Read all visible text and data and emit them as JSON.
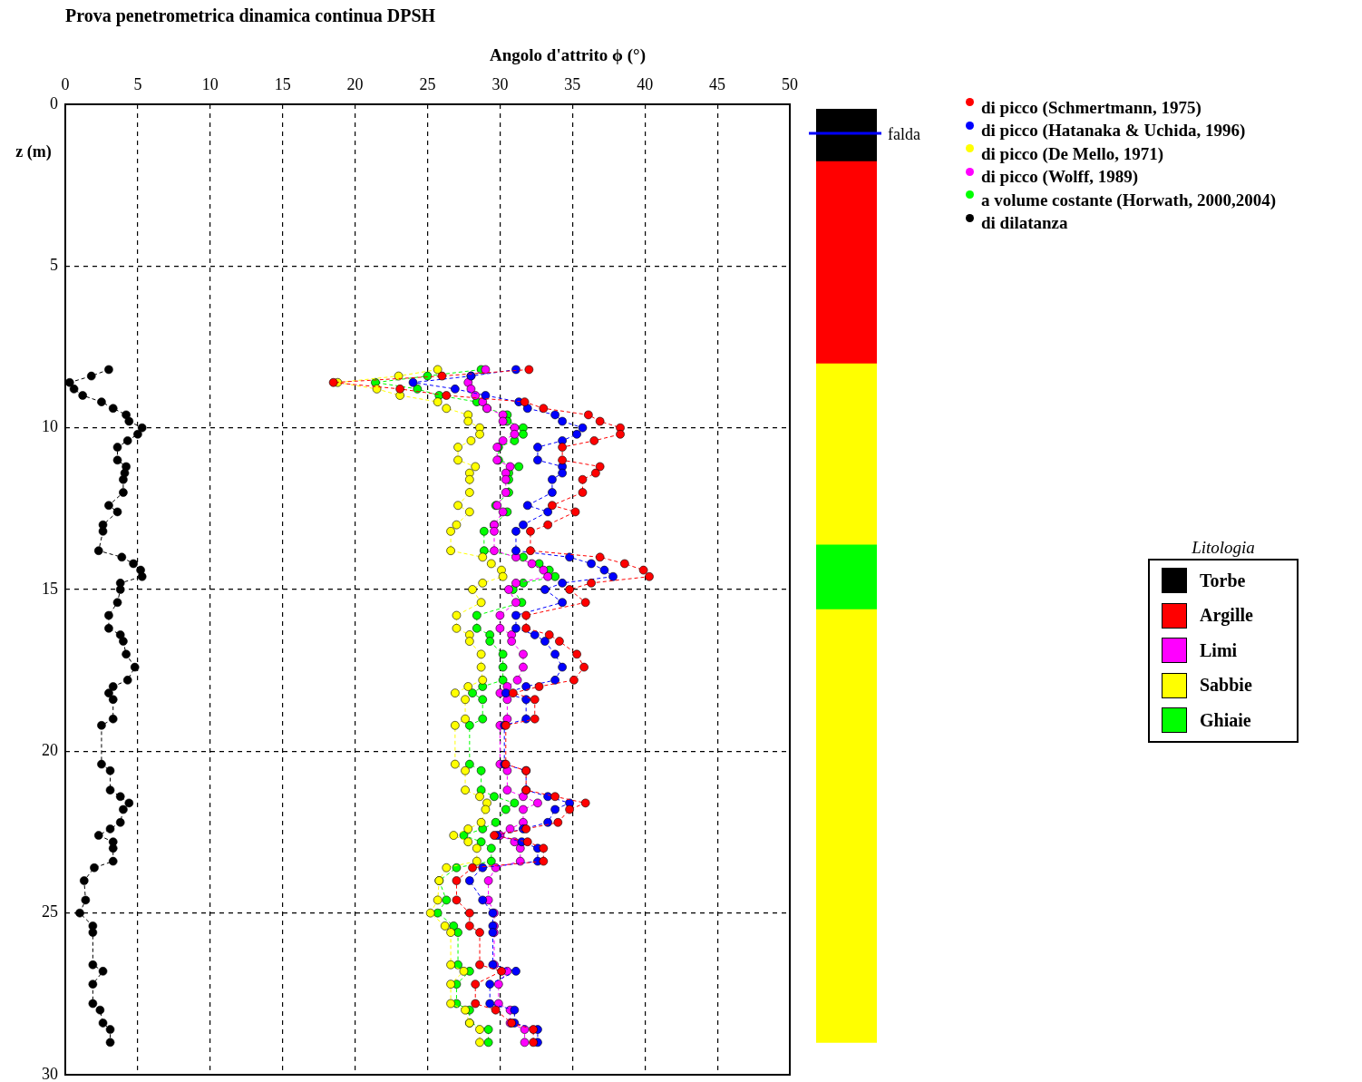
{
  "chart_data": [
    {
      "type": "line",
      "title": "Prova penetrometrica dinamica continua  DPSH",
      "xlabel": "Angolo d'attrito   ϕ (°)",
      "ylabel": "z (m)",
      "xlim": [
        0,
        50
      ],
      "xticks": [
        0,
        5,
        10,
        15,
        20,
        25,
        30,
        35,
        40,
        45,
        50
      ],
      "ylim": [
        30,
        0
      ],
      "yticks": [
        0,
        5,
        10,
        15,
        20,
        25,
        30
      ],
      "grid": true,
      "legend": "right",
      "marker": "circle",
      "line_style": "dashed",
      "series": [
        {
          "name": "di picco (Schmertmann, 1975)",
          "color": "#ff0000",
          "x": [
            32.0,
            26.0,
            18.5,
            23.1,
            26.3,
            31.7,
            33.0,
            36.1,
            36.9,
            38.3,
            38.3,
            36.5,
            34.3,
            34.3,
            36.9,
            36.6,
            35.7,
            35.7,
            33.6,
            35.2,
            33.3,
            32.1,
            32.1,
            36.9,
            38.6,
            39.9,
            40.3,
            36.3,
            34.8,
            35.9,
            31.8,
            31.8,
            33.4,
            34.1,
            35.3,
            35.8,
            35.1,
            32.7,
            30.9,
            32.4,
            32.4,
            30.4,
            30.4,
            31.8,
            31.8,
            33.8,
            35.9,
            34.8,
            34.0,
            31.8,
            29.6,
            31.9,
            33.0,
            33.0,
            28.1,
            27.0,
            27.0,
            27.9,
            27.9,
            28.6,
            28.6,
            30.1,
            28.3,
            28.3,
            29.7,
            30.8,
            32.3,
            32.3
          ],
          "values": [
            8.2,
            8.4,
            8.6,
            8.8,
            9.0,
            9.2,
            9.4,
            9.6,
            9.8,
            10.0,
            10.2,
            10.4,
            10.6,
            11.0,
            11.2,
            11.4,
            11.6,
            12.0,
            12.4,
            12.6,
            13.0,
            13.2,
            13.8,
            14.0,
            14.2,
            14.4,
            14.6,
            14.8,
            15.0,
            15.4,
            15.8,
            16.2,
            16.4,
            16.6,
            17.0,
            17.4,
            17.8,
            18.0,
            18.2,
            18.4,
            19.0,
            19.2,
            20.4,
            20.6,
            21.2,
            21.4,
            21.6,
            21.8,
            22.2,
            22.4,
            22.6,
            22.8,
            23.0,
            23.4,
            23.6,
            24.0,
            24.6,
            25.0,
            25.4,
            25.6,
            26.6,
            26.8,
            27.2,
            27.8,
            28.0,
            28.4,
            28.6,
            29.0
          ]
        },
        {
          "name": "di picco (Hatanaka & Uchida, 1996)",
          "color": "#0000ff",
          "x": [
            31.1,
            28.0,
            24.0,
            26.9,
            29.0,
            31.3,
            31.9,
            33.8,
            34.3,
            35.7,
            35.3,
            34.3,
            32.6,
            32.6,
            34.3,
            34.3,
            33.6,
            33.6,
            31.9,
            33.3,
            31.6,
            31.1,
            31.1,
            34.8,
            36.3,
            37.2,
            37.8,
            34.3,
            33.1,
            34.3,
            31.1,
            31.1,
            32.4,
            33.1,
            33.8,
            34.3,
            33.8,
            31.8,
            30.4,
            31.8,
            31.8,
            30.3,
            30.3,
            31.8,
            31.8,
            33.3,
            34.8,
            33.8,
            33.3,
            31.6,
            29.8,
            31.5,
            32.6,
            32.6,
            28.8,
            27.9,
            28.8,
            29.5,
            29.5,
            29.5,
            29.5,
            31.1,
            29.3,
            29.3,
            31.0,
            31.0,
            32.6,
            32.6
          ],
          "values": [
            8.2,
            8.4,
            8.6,
            8.8,
            9.0,
            9.2,
            9.4,
            9.6,
            9.8,
            10.0,
            10.2,
            10.4,
            10.6,
            11.0,
            11.2,
            11.4,
            11.6,
            12.0,
            12.4,
            12.6,
            13.0,
            13.2,
            13.8,
            14.0,
            14.2,
            14.4,
            14.6,
            14.8,
            15.0,
            15.4,
            15.8,
            16.2,
            16.4,
            16.6,
            17.0,
            17.4,
            17.8,
            18.0,
            18.2,
            18.4,
            19.0,
            19.2,
            20.4,
            20.6,
            21.2,
            21.4,
            21.6,
            21.8,
            22.2,
            22.4,
            22.6,
            22.8,
            23.0,
            23.4,
            23.6,
            24.0,
            24.6,
            25.0,
            25.4,
            25.6,
            26.6,
            26.8,
            27.2,
            27.8,
            28.0,
            28.4,
            28.6,
            29.0
          ]
        },
        {
          "name": "di picco (De Mello, 1971)",
          "color": "#ffff00",
          "x": [
            25.7,
            23.0,
            18.8,
            21.5,
            23.1,
            25.7,
            26.3,
            27.8,
            27.8,
            28.6,
            28.6,
            28.0,
            27.1,
            27.1,
            28.3,
            27.9,
            27.9,
            27.9,
            27.1,
            27.9,
            27.0,
            26.6,
            26.6,
            28.8,
            29.4,
            30.1,
            30.2,
            28.8,
            28.1,
            28.7,
            27.0,
            27.0,
            27.9,
            27.9,
            28.7,
            28.7,
            28.8,
            27.8,
            26.9,
            27.6,
            27.6,
            26.9,
            26.9,
            27.6,
            27.6,
            28.6,
            29.1,
            29.0,
            28.7,
            27.8,
            26.8,
            27.8,
            28.4,
            28.4,
            26.3,
            25.8,
            25.7,
            25.2,
            26.2,
            26.6,
            26.6,
            27.5,
            26.6,
            26.6,
            27.6,
            27.9,
            28.6,
            28.6
          ],
          "values": [
            8.2,
            8.4,
            8.6,
            8.8,
            9.0,
            9.2,
            9.4,
            9.6,
            9.8,
            10.0,
            10.2,
            10.4,
            10.6,
            11.0,
            11.2,
            11.4,
            11.6,
            12.0,
            12.4,
            12.6,
            13.0,
            13.2,
            13.8,
            14.0,
            14.2,
            14.4,
            14.6,
            14.8,
            15.0,
            15.4,
            15.8,
            16.2,
            16.4,
            16.6,
            17.0,
            17.4,
            17.8,
            18.0,
            18.2,
            18.4,
            19.0,
            19.2,
            20.4,
            20.6,
            21.2,
            21.4,
            21.6,
            21.8,
            22.2,
            22.4,
            22.6,
            22.8,
            23.0,
            23.4,
            23.6,
            24.0,
            24.6,
            25.0,
            25.4,
            25.6,
            26.6,
            26.8,
            27.2,
            27.8,
            28.0,
            28.4,
            28.6,
            29.0
          ]
        },
        {
          "name": "di picco (Wolff, 1989)",
          "color": "#ff00ff",
          "x": [
            29.0,
            28.0,
            27.8,
            28.0,
            28.3,
            28.8,
            29.1,
            30.2,
            30.2,
            31.0,
            31.0,
            30.2,
            29.8,
            29.8,
            30.7,
            30.4,
            30.4,
            30.4,
            29.8,
            30.2,
            29.6,
            29.6,
            29.6,
            31.1,
            32.2,
            33.0,
            33.3,
            31.1,
            30.6,
            31.1,
            30.0,
            30.0,
            30.8,
            30.8,
            31.6,
            31.6,
            31.2,
            30.5,
            30.0,
            30.5,
            30.5,
            30.0,
            30.0,
            30.5,
            30.5,
            31.6,
            32.6,
            31.6,
            31.6,
            30.7,
            30.0,
            31.0,
            31.4,
            31.4,
            29.7,
            29.2,
            29.2,
            29.6,
            29.6,
            29.6,
            29.6,
            30.5,
            29.9,
            29.9,
            30.7,
            30.7,
            31.7,
            31.7
          ],
          "values": [
            8.2,
            8.4,
            8.6,
            8.8,
            9.0,
            9.2,
            9.4,
            9.6,
            9.8,
            10.0,
            10.2,
            10.4,
            10.6,
            11.0,
            11.2,
            11.4,
            11.6,
            12.0,
            12.4,
            12.6,
            13.0,
            13.2,
            13.8,
            14.0,
            14.2,
            14.4,
            14.6,
            14.8,
            15.0,
            15.4,
            15.8,
            16.2,
            16.4,
            16.6,
            17.0,
            17.4,
            17.8,
            18.0,
            18.2,
            18.4,
            19.0,
            19.2,
            20.4,
            20.6,
            21.2,
            21.4,
            21.6,
            21.8,
            22.2,
            22.4,
            22.6,
            22.8,
            23.0,
            23.4,
            23.6,
            24.0,
            24.6,
            25.0,
            25.4,
            25.6,
            26.6,
            26.8,
            27.2,
            27.8,
            28.0,
            28.4,
            28.6,
            29.0
          ]
        },
        {
          "name": "a volume costante (Horwath, 2000,2004)",
          "color": "#00ff00",
          "x": [
            28.7,
            25.0,
            21.4,
            24.3,
            25.8,
            28.4,
            29.1,
            30.5,
            30.5,
            31.6,
            31.6,
            31.0,
            29.9,
            29.9,
            31.3,
            30.6,
            30.6,
            30.6,
            29.7,
            30.5,
            29.6,
            28.9,
            28.9,
            31.6,
            32.7,
            33.4,
            33.8,
            31.6,
            30.9,
            31.5,
            28.4,
            28.4,
            29.3,
            29.3,
            30.2,
            30.2,
            30.2,
            28.8,
            28.1,
            28.8,
            28.8,
            27.9,
            27.9,
            28.7,
            28.7,
            29.6,
            31.0,
            30.4,
            29.7,
            28.8,
            27.5,
            28.7,
            29.4,
            29.4,
            27.0,
            25.8,
            26.3,
            25.7,
            26.8,
            27.1,
            27.1,
            27.9,
            27.0,
            27.0,
            27.9,
            27.9,
            29.2,
            29.2
          ],
          "values": [
            8.2,
            8.4,
            8.6,
            8.8,
            9.0,
            9.2,
            9.4,
            9.6,
            9.8,
            10.0,
            10.2,
            10.4,
            10.6,
            11.0,
            11.2,
            11.4,
            11.6,
            12.0,
            12.4,
            12.6,
            13.0,
            13.2,
            13.8,
            14.0,
            14.2,
            14.4,
            14.6,
            14.8,
            15.0,
            15.4,
            15.8,
            16.2,
            16.4,
            16.6,
            17.0,
            17.4,
            17.8,
            18.0,
            18.2,
            18.4,
            19.0,
            19.2,
            20.4,
            20.6,
            21.2,
            21.4,
            21.6,
            21.8,
            22.2,
            22.4,
            22.6,
            22.8,
            23.0,
            23.4,
            23.6,
            24.0,
            24.6,
            25.0,
            25.4,
            25.6,
            26.6,
            26.8,
            27.2,
            27.8,
            28.0,
            28.4,
            28.6,
            29.0
          ]
        },
        {
          "name": "di dilatanza",
          "color": "#000000",
          "x": [
            3.0,
            1.8,
            0.3,
            0.6,
            1.2,
            2.5,
            3.3,
            4.2,
            4.4,
            5.3,
            5.0,
            4.3,
            3.6,
            3.6,
            4.2,
            4.1,
            4.0,
            4.0,
            3.0,
            3.6,
            2.6,
            2.6,
            2.3,
            3.9,
            4.7,
            5.2,
            5.3,
            3.8,
            3.8,
            3.6,
            3.0,
            3.0,
            3.8,
            4.0,
            4.2,
            4.8,
            4.3,
            3.3,
            3.0,
            3.3,
            3.3,
            2.5,
            2.5,
            3.1,
            3.1,
            3.8,
            4.4,
            4.0,
            3.8,
            3.1,
            2.3,
            3.3,
            3.3,
            3.3,
            2.0,
            1.3,
            1.4,
            1.0,
            1.9,
            1.9,
            1.9,
            2.6,
            1.9,
            1.9,
            2.4,
            2.6,
            3.1,
            3.1
          ],
          "values": [
            8.2,
            8.4,
            8.6,
            8.8,
            9.0,
            9.2,
            9.4,
            9.6,
            9.8,
            10.0,
            10.2,
            10.4,
            10.6,
            11.0,
            11.2,
            11.4,
            11.6,
            12.0,
            12.4,
            12.6,
            13.0,
            13.2,
            13.8,
            14.0,
            14.2,
            14.4,
            14.6,
            14.8,
            15.0,
            15.4,
            15.8,
            16.2,
            16.4,
            16.6,
            17.0,
            17.4,
            17.8,
            18.0,
            18.2,
            18.4,
            19.0,
            19.2,
            20.4,
            20.6,
            21.2,
            21.4,
            21.6,
            21.8,
            22.2,
            22.4,
            22.6,
            22.8,
            23.0,
            23.4,
            23.6,
            24.0,
            24.6,
            25.0,
            25.4,
            25.6,
            26.6,
            26.8,
            27.2,
            27.8,
            28.0,
            28.4,
            28.6,
            29.0
          ]
        }
      ]
    },
    {
      "type": "bar",
      "categories": [
        null
      ],
      "ylim": [
        30,
        0
      ],
      "tick_labels": false,
      "legend": "right",
      "legend_title": "Litologia",
      "series": [
        {
          "name": "Torbe",
          "color": "#000000",
          "base": [
            0.15
          ],
          "values": [
            1.6
          ]
        },
        {
          "name": "Argille",
          "color": "#ff0000",
          "base": [
            1.75
          ],
          "values": [
            6.25
          ]
        },
        {
          "name": "Limi",
          "color": "#ff00ff",
          "base": [
            null
          ],
          "values": [
            null
          ]
        },
        {
          "name": "Sabbie",
          "color": "#ffff00",
          "base": [
            8.0
          ],
          "values": [
            5.6
          ]
        },
        {
          "name": "Ghiaie",
          "color": "#00ff00",
          "base": [
            13.6
          ],
          "values": [
            2.0
          ]
        },
        {
          "color": "#ffff00",
          "base": [
            15.6
          ],
          "values": [
            13.4
          ]
        }
      ],
      "ref_lines": [
        {
          "axis": "y",
          "value": 0.9,
          "label": "falda",
          "color": "#0000ff"
        }
      ]
    }
  ]
}
